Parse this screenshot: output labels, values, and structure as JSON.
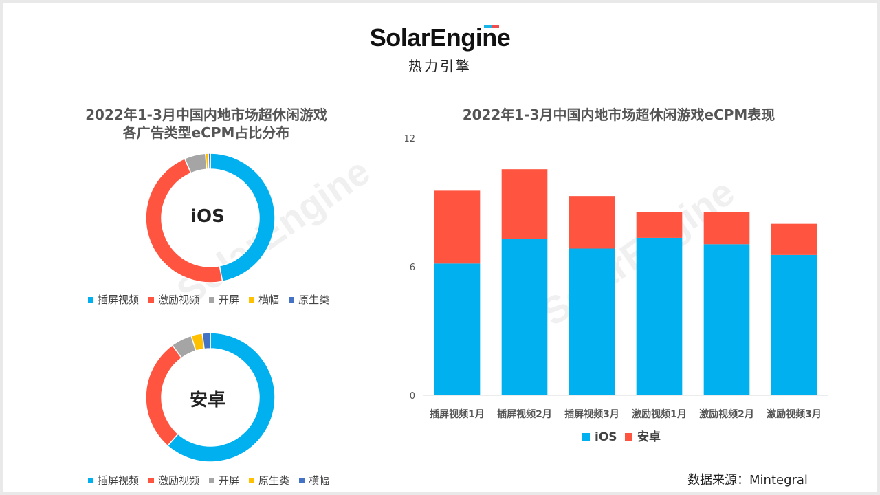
{
  "brand": {
    "name_en": "SolarEngine",
    "name_cn": "热力引擎",
    "accent_a": "#19b4e8",
    "accent_b": "#f04e4e"
  },
  "colors": {
    "blue": "#00b0ef",
    "red": "#ff5540",
    "gray": "#a5a5a5",
    "yellow": "#ffc000",
    "navy": "#4472c4"
  },
  "chart_data": [
    {
      "type": "pie",
      "title_lines": [
        "2022年1-3月中国内地市场超休闲游戏",
        "各广告类型eCPM占比分布"
      ],
      "center_label": "iOS",
      "slices": [
        {
          "name": "插屏视频",
          "value": 47.0,
          "color": "#00b0ef"
        },
        {
          "name": "激励视频",
          "value": 46.5,
          "color": "#ff5540"
        },
        {
          "name": "开屏",
          "value": 5.3,
          "color": "#a5a5a5"
        },
        {
          "name": "横幅",
          "value": 0.7,
          "color": "#ffc000"
        },
        {
          "name": "原生类",
          "value": 0.5,
          "color": "#4472c4"
        }
      ]
    },
    {
      "type": "pie",
      "center_label": "安卓",
      "slices": [
        {
          "name": "插屏视频",
          "value": 61.5,
          "color": "#00b0ef"
        },
        {
          "name": "激励视频",
          "value": 28.5,
          "color": "#ff5540"
        },
        {
          "name": "开屏",
          "value": 5.2,
          "color": "#a5a5a5"
        },
        {
          "name": "原生类",
          "value": 2.8,
          "color": "#ffc000"
        },
        {
          "name": "横幅",
          "value": 2.0,
          "color": "#4472c4"
        }
      ]
    },
    {
      "type": "bar",
      "stacked": true,
      "title": "2022年1-3月中国内地市场超休闲游戏eCPM表现",
      "categories": [
        "插屏视频1月",
        "插屏视频2月",
        "插屏视频3月",
        "激励视频1月",
        "激励视频2月",
        "激励视频3月"
      ],
      "series": [
        {
          "name": "iOS",
          "color": "#00b0ef",
          "values": [
            6.15,
            7.3,
            6.85,
            7.35,
            7.05,
            6.55
          ]
        },
        {
          "name": "安卓",
          "color": "#ff5540",
          "values": [
            3.4,
            3.25,
            2.45,
            1.2,
            1.5,
            1.45
          ]
        }
      ],
      "yticks": [
        0,
        6,
        12
      ],
      "ylim": [
        0,
        12
      ],
      "legend_position": "bottom"
    }
  ],
  "source": "数据来源：Mintegral"
}
